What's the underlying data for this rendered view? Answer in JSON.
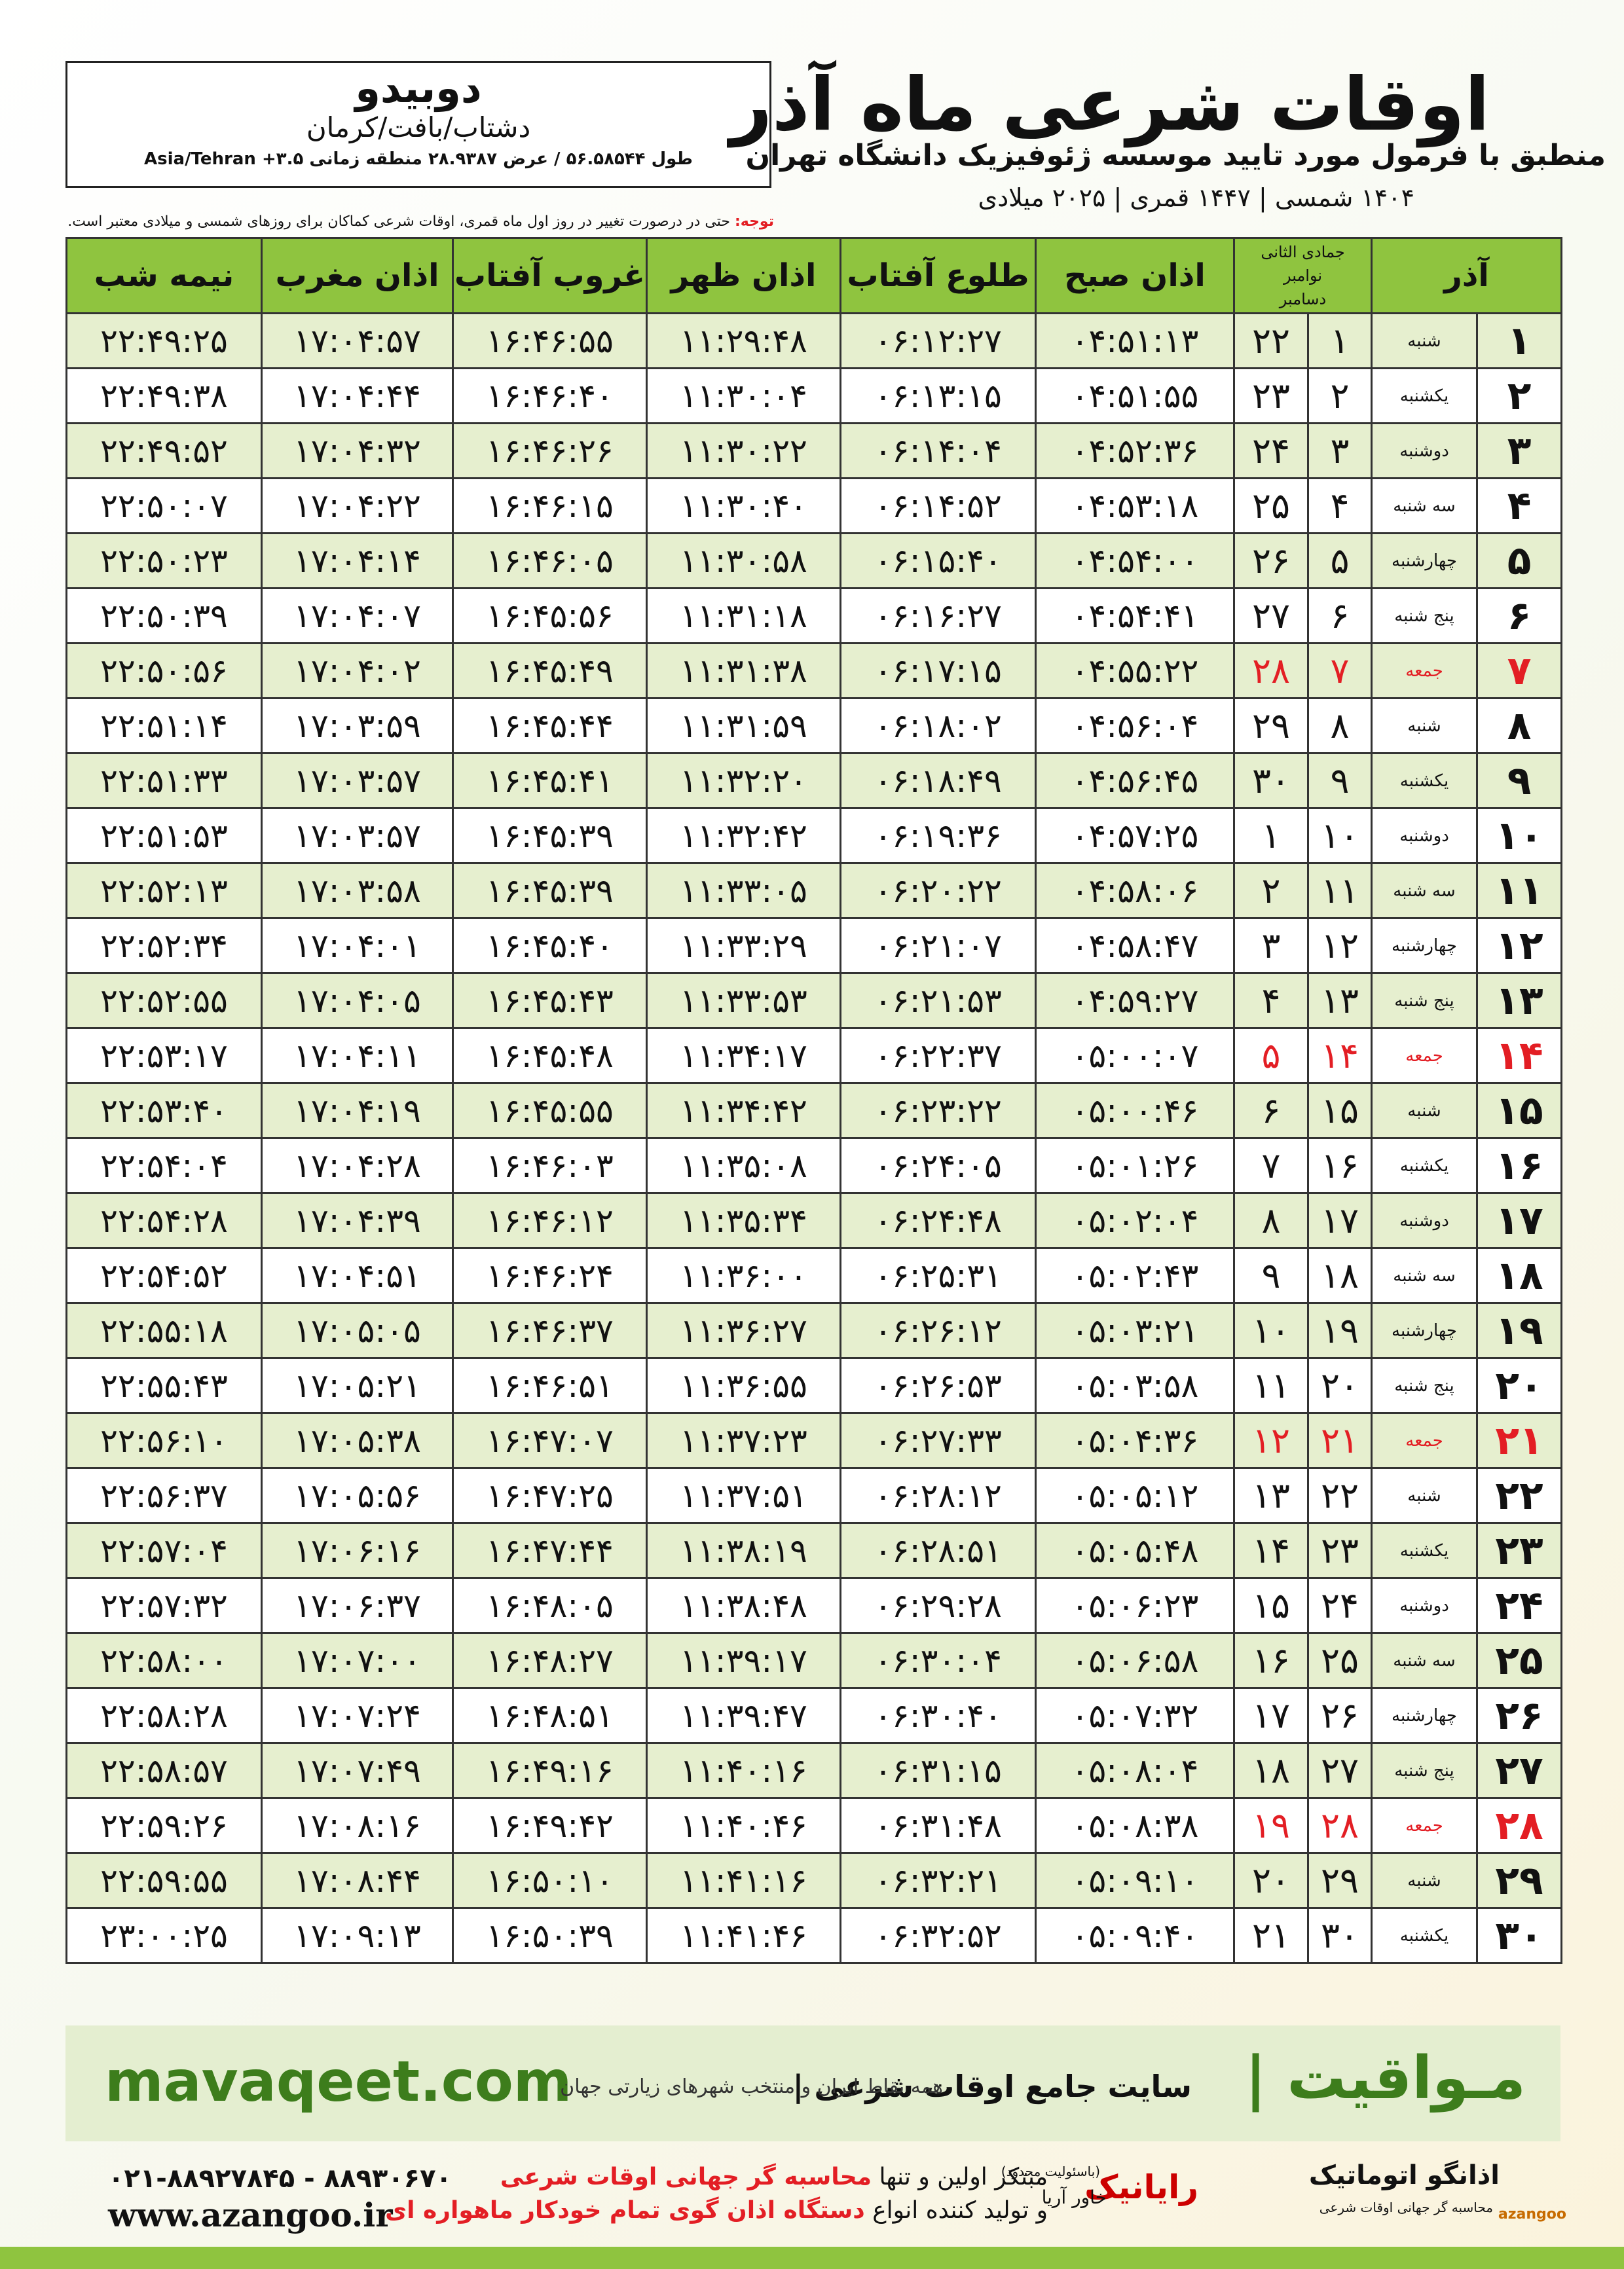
{
  "header": {
    "title": "اوقات شرعی ماه آذر",
    "subtitle": "منطبق با فرمول مورد تایید موسسه ژئوفیزیک دانشگاه تهران",
    "dateline": "۱۴۰۴ شمسی | ۱۴۴۷ قمری | ۲۰۲۵ میلادی",
    "note_label": "توجه:",
    "note": "حتی در درصورت تغییر در روز اول ماه قمری، اوقات شرعی کماکان برای روزهای شمسی و میلادی معتبر است."
  },
  "location": {
    "name": "دوبیدو",
    "region": "دشتاب/بافت/کرمان",
    "coords": "طول ۵۶.۵۸۵۴۴ / عرض ۲۸.۹۳۸۷ منطقه زمانی ۳.۵+ Asia/Tehran"
  },
  "table": {
    "head": {
      "month": "آذر",
      "hijri": "جمادی الثانی",
      "greg_top": "نوامبر",
      "greg_bottom": "دسامبر",
      "times": [
        "اذان صبح",
        "طلوع آفتاب",
        "اذان ظهر",
        "غروب آفتاب",
        "اذان مغرب",
        "نیمه شب"
      ]
    },
    "rows": [
      {
        "cells": [
          "۱",
          "شنبه",
          "۱",
          "۲۲",
          "۰۴:۵۱:۱۳",
          "۰۶:۱۲:۲۷",
          "۱۱:۲۹:۴۸",
          "۱۶:۴۶:۵۵",
          "۱۷:۰۴:۵۷",
          "۲۲:۴۹:۲۵"
        ]
      },
      {
        "cells": [
          "۲",
          "یکشنبه",
          "۲",
          "۲۳",
          "۰۴:۵۱:۵۵",
          "۰۶:۱۳:۱۵",
          "۱۱:۳۰:۰۴",
          "۱۶:۴۶:۴۰",
          "۱۷:۰۴:۴۴",
          "۲۲:۴۹:۳۸"
        ]
      },
      {
        "cells": [
          "۳",
          "دوشنبه",
          "۳",
          "۲۴",
          "۰۴:۵۲:۳۶",
          "۰۶:۱۴:۰۴",
          "۱۱:۳۰:۲۲",
          "۱۶:۴۶:۲۶",
          "۱۷:۰۴:۳۲",
          "۲۲:۴۹:۵۲"
        ]
      },
      {
        "cells": [
          "۴",
          "سه شنبه",
          "۴",
          "۲۵",
          "۰۴:۵۳:۱۸",
          "۰۶:۱۴:۵۲",
          "۱۱:۳۰:۴۰",
          "۱۶:۴۶:۱۵",
          "۱۷:۰۴:۲۲",
          "۲۲:۵۰:۰۷"
        ]
      },
      {
        "cells": [
          "۵",
          "چهارشنبه",
          "۵",
          "۲۶",
          "۰۴:۵۴:۰۰",
          "۰۶:۱۵:۴۰",
          "۱۱:۳۰:۵۸",
          "۱۶:۴۶:۰۵",
          "۱۷:۰۴:۱۴",
          "۲۲:۵۰:۲۳"
        ]
      },
      {
        "cells": [
          "۶",
          "پنج شنبه",
          "۶",
          "۲۷",
          "۰۴:۵۴:۴۱",
          "۰۶:۱۶:۲۷",
          "۱۱:۳۱:۱۸",
          "۱۶:۴۵:۵۶",
          "۱۷:۰۴:۰۷",
          "۲۲:۵۰:۳۹"
        ]
      },
      {
        "cells": [
          "۷",
          "جمعه",
          "۷",
          "۲۸",
          "۰۴:۵۵:۲۲",
          "۰۶:۱۷:۱۵",
          "۱۱:۳۱:۳۸",
          "۱۶:۴۵:۴۹",
          "۱۷:۰۴:۰۲",
          "۲۲:۵۰:۵۶"
        ],
        "color": "#e31e24"
      },
      {
        "cells": [
          "۸",
          "شنبه",
          "۸",
          "۲۹",
          "۰۴:۵۶:۰۴",
          "۰۶:۱۸:۰۲",
          "۱۱:۳۱:۵۹",
          "۱۶:۴۵:۴۴",
          "۱۷:۰۳:۵۹",
          "۲۲:۵۱:۱۴"
        ]
      },
      {
        "cells": [
          "۹",
          "یکشنبه",
          "۹",
          "۳۰",
          "۰۴:۵۶:۴۵",
          "۰۶:۱۸:۴۹",
          "۱۱:۳۲:۲۰",
          "۱۶:۴۵:۴۱",
          "۱۷:۰۳:۵۷",
          "۲۲:۵۱:۳۳"
        ]
      },
      {
        "cells": [
          "۱۰",
          "دوشنبه",
          "۱۰",
          "۱",
          "۰۴:۵۷:۲۵",
          "۰۶:۱۹:۳۶",
          "۱۱:۳۲:۴۲",
          "۱۶:۴۵:۳۹",
          "۱۷:۰۳:۵۷",
          "۲۲:۵۱:۵۳"
        ]
      },
      {
        "cells": [
          "۱۱",
          "سه شنبه",
          "۱۱",
          "۲",
          "۰۴:۵۸:۰۶",
          "۰۶:۲۰:۲۲",
          "۱۱:۳۳:۰۵",
          "۱۶:۴۵:۳۹",
          "۱۷:۰۳:۵۸",
          "۲۲:۵۲:۱۳"
        ]
      },
      {
        "cells": [
          "۱۲",
          "چهارشنبه",
          "۱۲",
          "۳",
          "۰۴:۵۸:۴۷",
          "۰۶:۲۱:۰۷",
          "۱۱:۳۳:۲۹",
          "۱۶:۴۵:۴۰",
          "۱۷:۰۴:۰۱",
          "۲۲:۵۲:۳۴"
        ]
      },
      {
        "cells": [
          "۱۳",
          "پنج شنبه",
          "۱۳",
          "۴",
          "۰۴:۵۹:۲۷",
          "۰۶:۲۱:۵۳",
          "۱۱:۳۳:۵۳",
          "۱۶:۴۵:۴۳",
          "۱۷:۰۴:۰۵",
          "۲۲:۵۲:۵۵"
        ]
      },
      {
        "cells": [
          "۱۴",
          "جمعه",
          "۱۴",
          "۵",
          "۰۵:۰۰:۰۷",
          "۰۶:۲۲:۳۷",
          "۱۱:۳۴:۱۷",
          "۱۶:۴۵:۴۸",
          "۱۷:۰۴:۱۱",
          "۲۲:۵۳:۱۷"
        ],
        "color": "#e31e24"
      },
      {
        "cells": [
          "۱۵",
          "شنبه",
          "۱۵",
          "۶",
          "۰۵:۰۰:۴۶",
          "۰۶:۲۳:۲۲",
          "۱۱:۳۴:۴۲",
          "۱۶:۴۵:۵۵",
          "۱۷:۰۴:۱۹",
          "۲۲:۵۳:۴۰"
        ]
      },
      {
        "cells": [
          "۱۶",
          "یکشنبه",
          "۱۶",
          "۷",
          "۰۵:۰۱:۲۶",
          "۰۶:۲۴:۰۵",
          "۱۱:۳۵:۰۸",
          "۱۶:۴۶:۰۳",
          "۱۷:۰۴:۲۸",
          "۲۲:۵۴:۰۴"
        ]
      },
      {
        "cells": [
          "۱۷",
          "دوشنبه",
          "۱۷",
          "۸",
          "۰۵:۰۲:۰۴",
          "۰۶:۲۴:۴۸",
          "۱۱:۳۵:۳۴",
          "۱۶:۴۶:۱۲",
          "۱۷:۰۴:۳۹",
          "۲۲:۵۴:۲۸"
        ]
      },
      {
        "cells": [
          "۱۸",
          "سه شنبه",
          "۱۸",
          "۹",
          "۰۵:۰۲:۴۳",
          "۰۶:۲۵:۳۱",
          "۱۱:۳۶:۰۰",
          "۱۶:۴۶:۲۴",
          "۱۷:۰۴:۵۱",
          "۲۲:۵۴:۵۲"
        ]
      },
      {
        "cells": [
          "۱۹",
          "چهارشنبه",
          "۱۹",
          "۱۰",
          "۰۵:۰۳:۲۱",
          "۰۶:۲۶:۱۲",
          "۱۱:۳۶:۲۷",
          "۱۶:۴۶:۳۷",
          "۱۷:۰۵:۰۵",
          "۲۲:۵۵:۱۸"
        ]
      },
      {
        "cells": [
          "۲۰",
          "پنج شنبه",
          "۲۰",
          "۱۱",
          "۰۵:۰۳:۵۸",
          "۰۶:۲۶:۵۳",
          "۱۱:۳۶:۵۵",
          "۱۶:۴۶:۵۱",
          "۱۷:۰۵:۲۱",
          "۲۲:۵۵:۴۳"
        ]
      },
      {
        "cells": [
          "۲۱",
          "جمعه",
          "۲۱",
          "۱۲",
          "۰۵:۰۴:۳۶",
          "۰۶:۲۷:۳۳",
          "۱۱:۳۷:۲۳",
          "۱۶:۴۷:۰۷",
          "۱۷:۰۵:۳۸",
          "۲۲:۵۶:۱۰"
        ],
        "color": "#e31e24"
      },
      {
        "cells": [
          "۲۲",
          "شنبه",
          "۲۲",
          "۱۳",
          "۰۵:۰۵:۱۲",
          "۰۶:۲۸:۱۲",
          "۱۱:۳۷:۵۱",
          "۱۶:۴۷:۲۵",
          "۱۷:۰۵:۵۶",
          "۲۲:۵۶:۳۷"
        ]
      },
      {
        "cells": [
          "۲۳",
          "یکشنبه",
          "۲۳",
          "۱۴",
          "۰۵:۰۵:۴۸",
          "۰۶:۲۸:۵۱",
          "۱۱:۳۸:۱۹",
          "۱۶:۴۷:۴۴",
          "۱۷:۰۶:۱۶",
          "۲۲:۵۷:۰۴"
        ]
      },
      {
        "cells": [
          "۲۴",
          "دوشنبه",
          "۲۴",
          "۱۵",
          "۰۵:۰۶:۲۳",
          "۰۶:۲۹:۲۸",
          "۱۱:۳۸:۴۸",
          "۱۶:۴۸:۰۵",
          "۱۷:۰۶:۳۷",
          "۲۲:۵۷:۳۲"
        ]
      },
      {
        "cells": [
          "۲۵",
          "سه شنبه",
          "۲۵",
          "۱۶",
          "۰۵:۰۶:۵۸",
          "۰۶:۳۰:۰۴",
          "۱۱:۳۹:۱۷",
          "۱۶:۴۸:۲۷",
          "۱۷:۰۷:۰۰",
          "۲۲:۵۸:۰۰"
        ]
      },
      {
        "cells": [
          "۲۶",
          "چهارشنبه",
          "۲۶",
          "۱۷",
          "۰۵:۰۷:۳۲",
          "۰۶:۳۰:۴۰",
          "۱۱:۳۹:۴۷",
          "۱۶:۴۸:۵۱",
          "۱۷:۰۷:۲۴",
          "۲۲:۵۸:۲۸"
        ]
      },
      {
        "cells": [
          "۲۷",
          "پنج شنبه",
          "۲۷",
          "۱۸",
          "۰۵:۰۸:۰۴",
          "۰۶:۳۱:۱۵",
          "۱۱:۴۰:۱۶",
          "۱۶:۴۹:۱۶",
          "۱۷:۰۷:۴۹",
          "۲۲:۵۸:۵۷"
        ]
      },
      {
        "cells": [
          "۲۸",
          "جمعه",
          "۲۸",
          "۱۹",
          "۰۵:۰۸:۳۸",
          "۰۶:۳۱:۴۸",
          "۱۱:۴۰:۴۶",
          "۱۶:۴۹:۴۲",
          "۱۷:۰۸:۱۶",
          "۲۲:۵۹:۲۶"
        ],
        "color": "#e31e24"
      },
      {
        "cells": [
          "۲۹",
          "شنبه",
          "۲۹",
          "۲۰",
          "۰۵:۰۹:۱۰",
          "۰۶:۳۲:۲۱",
          "۱۱:۴۱:۱۶",
          "۱۶:۵۰:۱۰",
          "۱۷:۰۸:۴۴",
          "۲۲:۵۹:۵۵"
        ]
      },
      {
        "cells": [
          "۳۰",
          "یکشنبه",
          "۳۰",
          "۲۱",
          "۰۵:۰۹:۴۰",
          "۰۶:۳۲:۵۲",
          "۱۱:۴۱:۴۶",
          "۱۶:۵۰:۳۹",
          "۱۷:۰۹:۱۳",
          "۲۳:۰۰:۲۵"
        ]
      }
    ]
  },
  "footer": {
    "site": "mavaqeet.com",
    "brand": "مـواقیت |",
    "slogan": "سایت جامع اوقات شرعی |",
    "slogan2": "همه نقاط ایران و منتخب شهرهای زیارتی جهان",
    "phones": "۰۲۱-۸۸۹۲۷۸۴۵ - ۸۸۹۳۰۶۷۰",
    "web": "www.azangoo.ir",
    "line1_a": "مبتکر اولین و تنها",
    "line1_b": "محاسبه گر جهانی اوقات شرعی",
    "line2_a": "و تولید کننده انواع",
    "line2_b": "دستگاه اذان گوی تمام خودکار ماهواره ای",
    "logo1": "رایانیک",
    "logo1_note": "(باسئولیت محدود)",
    "logo1_sub": "خاور آریا",
    "logo2": "اذانگو اتوماتیک",
    "logo2_sub": "محاسبه گر جهانی اوقات شرعی",
    "logo2_latin": "azangoo"
  }
}
